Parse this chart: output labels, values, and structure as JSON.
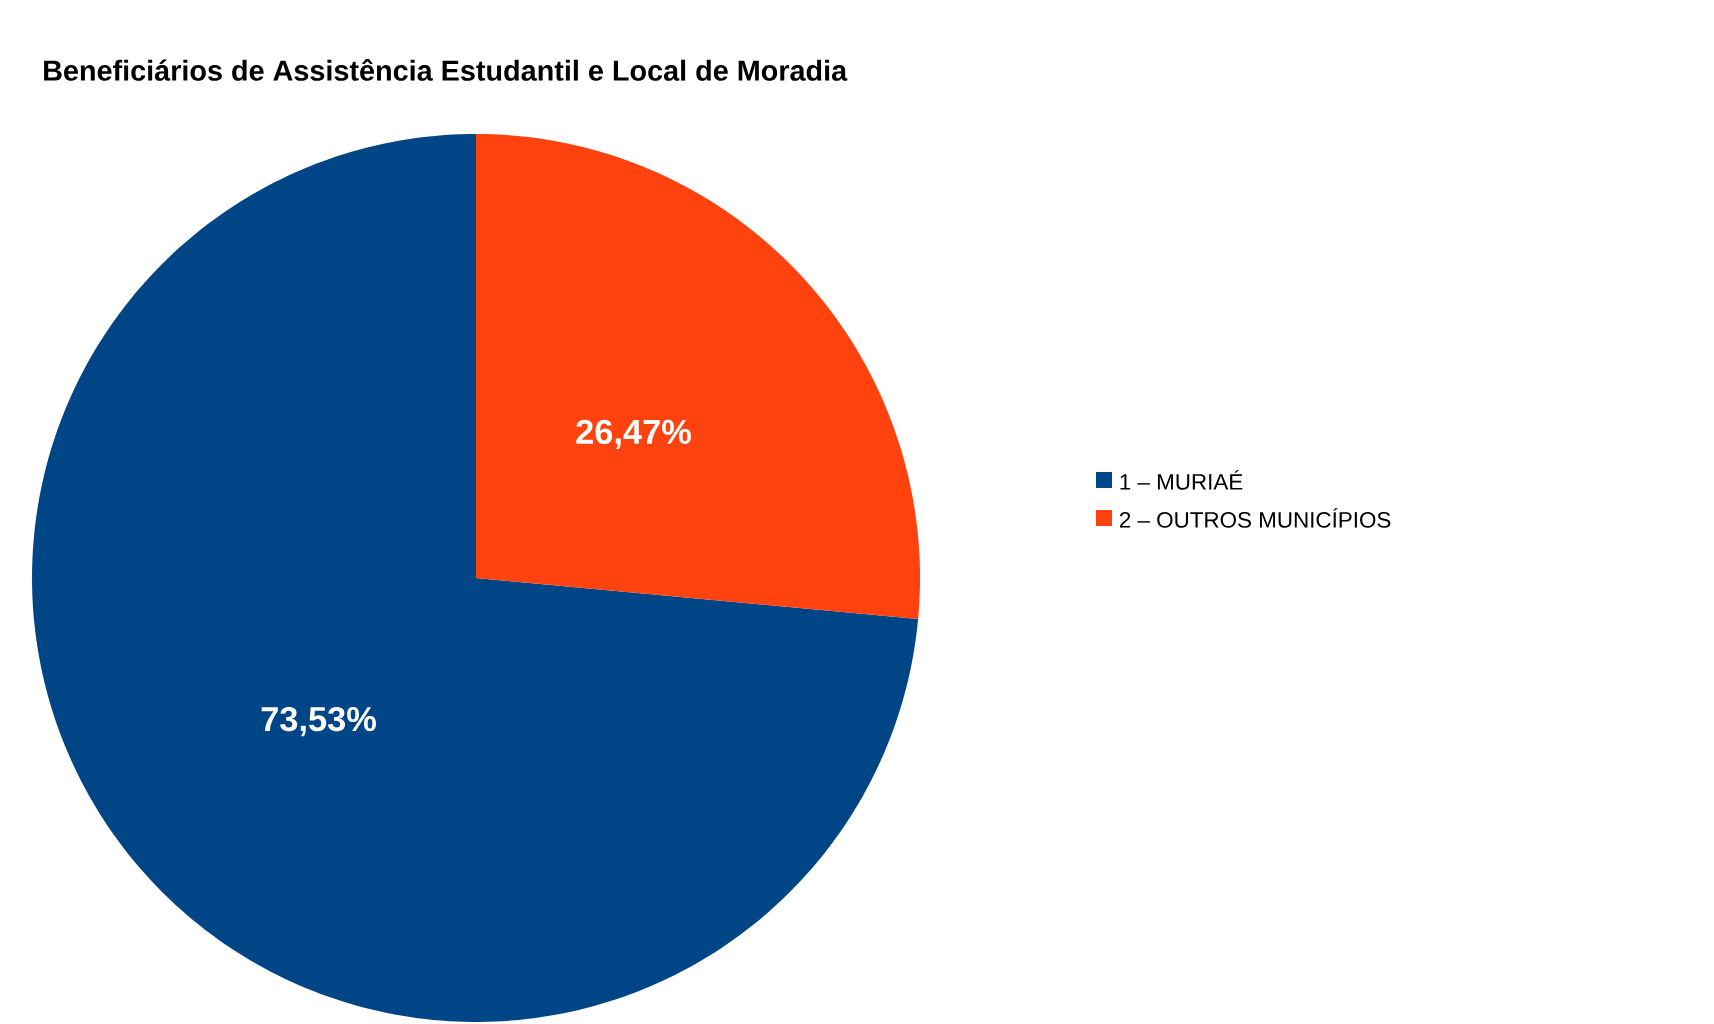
{
  "chart_data": {
    "type": "pie",
    "title": "Beneficiários de Assistência Estudantil e Local de Moradia",
    "categories": [
      "1 – MURIAÉ",
      "2 – OUTROS MUNICÍPIOS"
    ],
    "values": [
      73.53,
      26.47
    ],
    "colors": [
      "#004586",
      "#ff420e"
    ],
    "value_labels": [
      "73,53%",
      "26,47%"
    ],
    "legend": "right"
  }
}
